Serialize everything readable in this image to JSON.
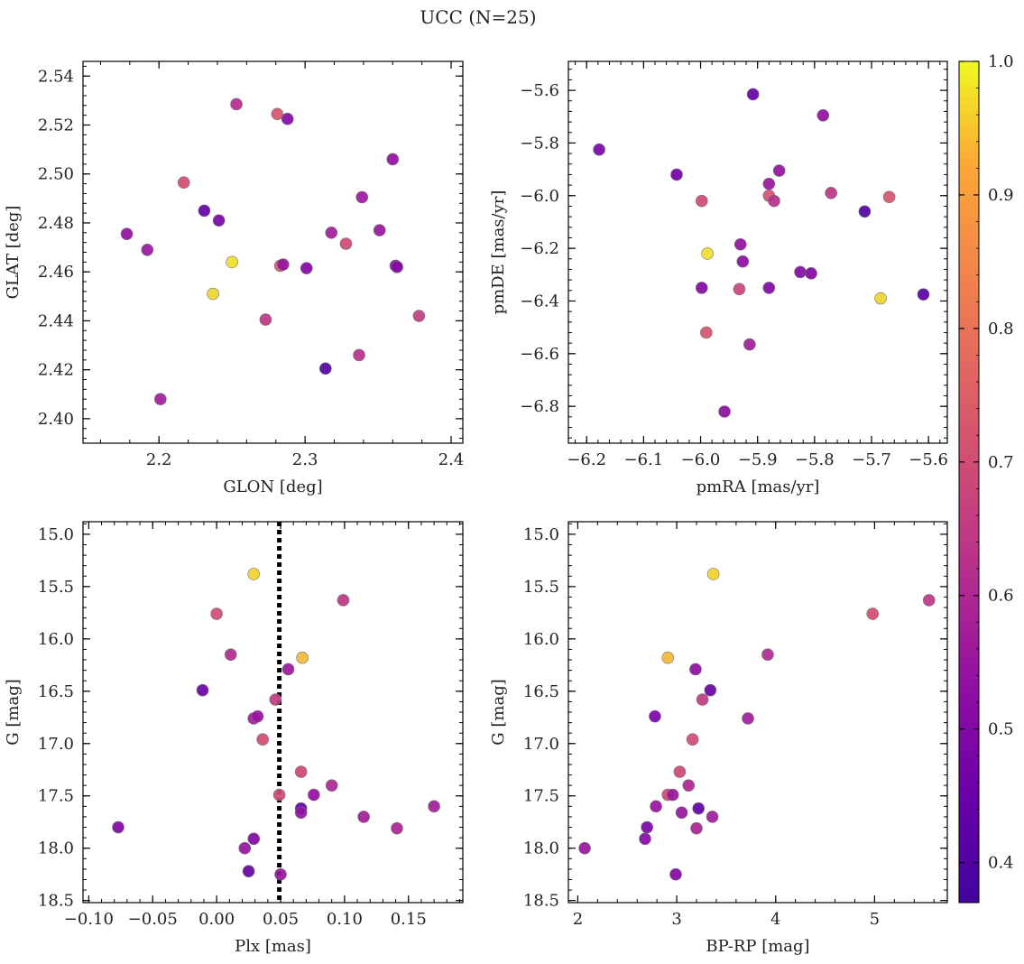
{
  "figure": {
    "title": "UCC (N=25)"
  },
  "colorbar": {
    "range": [
      0.37,
      1.0
    ],
    "ticks": [
      0.4,
      0.5,
      0.6,
      0.7,
      0.8,
      0.9,
      1.0
    ],
    "tick_labels": [
      "0.4",
      "0.5",
      "0.6",
      "0.7",
      "0.8",
      "0.9",
      "1.0"
    ],
    "colormap": "plasma"
  },
  "chart_data": [
    {
      "type": "scatter",
      "id": "glon-glat",
      "title": "",
      "xlabel": "GLON [deg]",
      "ylabel": "GLAT [deg]",
      "xlim": [
        2.148,
        2.408
      ],
      "ylim": [
        2.39,
        2.546
      ],
      "y_inverted": false,
      "xticks": [
        2.2,
        2.3,
        2.4
      ],
      "xtick_labels": [
        "2.2",
        "2.3",
        "2.4"
      ],
      "yticks": [
        2.4,
        2.42,
        2.44,
        2.46,
        2.48,
        2.5,
        2.52,
        2.54
      ],
      "ytick_labels": [
        "2.40",
        "2.42",
        "2.44",
        "2.46",
        "2.48",
        "2.50",
        "2.52",
        "2.54"
      ],
      "points": [
        {
          "x": 2.178,
          "y": 2.4755,
          "c": 0.56
        },
        {
          "x": 2.192,
          "y": 2.469,
          "c": 0.58
        },
        {
          "x": 2.201,
          "y": 2.408,
          "c": 0.6
        },
        {
          "x": 2.217,
          "y": 2.4965,
          "c": 0.75
        },
        {
          "x": 2.231,
          "y": 2.485,
          "c": 0.45
        },
        {
          "x": 2.237,
          "y": 2.451,
          "c": 0.97
        },
        {
          "x": 2.241,
          "y": 2.481,
          "c": 0.5
        },
        {
          "x": 2.25,
          "y": 2.464,
          "c": 0.98
        },
        {
          "x": 2.253,
          "y": 2.5285,
          "c": 0.65
        },
        {
          "x": 2.273,
          "y": 2.4405,
          "c": 0.68
        },
        {
          "x": 2.281,
          "y": 2.5245,
          "c": 0.77
        },
        {
          "x": 2.283,
          "y": 2.4625,
          "c": 0.78
        },
        {
          "x": 2.285,
          "y": 2.463,
          "c": 0.57
        },
        {
          "x": 2.288,
          "y": 2.5225,
          "c": 0.53
        },
        {
          "x": 2.301,
          "y": 2.4615,
          "c": 0.52
        },
        {
          "x": 2.314,
          "y": 2.4205,
          "c": 0.42
        },
        {
          "x": 2.318,
          "y": 2.476,
          "c": 0.6
        },
        {
          "x": 2.328,
          "y": 2.4715,
          "c": 0.74
        },
        {
          "x": 2.337,
          "y": 2.426,
          "c": 0.66
        },
        {
          "x": 2.339,
          "y": 2.4905,
          "c": 0.59
        },
        {
          "x": 2.351,
          "y": 2.477,
          "c": 0.57
        },
        {
          "x": 2.36,
          "y": 2.506,
          "c": 0.56
        },
        {
          "x": 2.362,
          "y": 2.4625,
          "c": 0.54
        },
        {
          "x": 2.363,
          "y": 2.462,
          "c": 0.53
        },
        {
          "x": 2.378,
          "y": 2.442,
          "c": 0.7
        }
      ]
    },
    {
      "type": "scatter",
      "id": "pmra-pmde",
      "title": "",
      "xlabel": "pmRA [mas/yr]",
      "ylabel": "pmDE [mas/yr]",
      "xlim": [
        -6.232,
        -5.567
      ],
      "ylim": [
        -6.94,
        -5.49
      ],
      "y_inverted": false,
      "xticks": [
        -6.2,
        -6.1,
        -6.0,
        -5.9,
        -5.8,
        -5.7,
        -5.6
      ],
      "xtick_labels": [
        "−6.2",
        "−6.1",
        "−6.0",
        "−5.9",
        "−5.8",
        "−5.7",
        "−5.6"
      ],
      "yticks": [
        -6.8,
        -6.6,
        -6.4,
        -6.2,
        -6.0,
        -5.8,
        -5.6
      ],
      "ytick_labels": [
        "−6.8",
        "−6.6",
        "−6.4",
        "−6.2",
        "−6.0",
        "−5.8",
        "−5.6"
      ],
      "points": [
        {
          "x": -6.178,
          "y": -5.825,
          "c": 0.5
        },
        {
          "x": -6.042,
          "y": -5.92,
          "c": 0.48
        },
        {
          "x": -5.998,
          "y": -6.35,
          "c": 0.52
        },
        {
          "x": -5.998,
          "y": -6.02,
          "c": 0.74
        },
        {
          "x": -5.99,
          "y": -6.52,
          "c": 0.77
        },
        {
          "x": -5.988,
          "y": -6.22,
          "c": 0.98
        },
        {
          "x": -5.958,
          "y": -6.82,
          "c": 0.55
        },
        {
          "x": -5.932,
          "y": -6.355,
          "c": 0.72
        },
        {
          "x": -5.93,
          "y": -6.185,
          "c": 0.56
        },
        {
          "x": -5.926,
          "y": -6.25,
          "c": 0.55
        },
        {
          "x": -5.914,
          "y": -6.565,
          "c": 0.6
        },
        {
          "x": -5.908,
          "y": -5.615,
          "c": 0.45
        },
        {
          "x": -5.88,
          "y": -6.35,
          "c": 0.52
        },
        {
          "x": -5.88,
          "y": -5.955,
          "c": 0.57
        },
        {
          "x": -5.88,
          "y": -6.0,
          "c": 0.76
        },
        {
          "x": -5.871,
          "y": -6.02,
          "c": 0.66
        },
        {
          "x": -5.862,
          "y": -5.905,
          "c": 0.56
        },
        {
          "x": -5.825,
          "y": -6.29,
          "c": 0.53
        },
        {
          "x": -5.806,
          "y": -6.295,
          "c": 0.52
        },
        {
          "x": -5.785,
          "y": -5.695,
          "c": 0.56
        },
        {
          "x": -5.771,
          "y": -5.99,
          "c": 0.68
        },
        {
          "x": -5.712,
          "y": -6.06,
          "c": 0.42
        },
        {
          "x": -5.684,
          "y": -6.39,
          "c": 0.97
        },
        {
          "x": -5.669,
          "y": -6.005,
          "c": 0.77
        },
        {
          "x": -5.609,
          "y": -6.375,
          "c": 0.42
        }
      ]
    },
    {
      "type": "scatter",
      "id": "plx-g",
      "title": "",
      "xlabel": "Plx [mas]",
      "ylabel": "G [mag]",
      "xlim": [
        -0.1045,
        0.1925
      ],
      "ylim": [
        14.88,
        18.52
      ],
      "y_inverted": true,
      "xticks": [
        -0.1,
        -0.05,
        0.0,
        0.05,
        0.1,
        0.15
      ],
      "xtick_labels": [
        "−0.10",
        "−0.05",
        "0.00",
        "0.05",
        "0.10",
        "0.15"
      ],
      "yticks": [
        15.0,
        15.5,
        16.0,
        16.5,
        17.0,
        17.5,
        18.0,
        18.5
      ],
      "ytick_labels": [
        "15.0",
        "15.5",
        "16.0",
        "16.5",
        "17.0",
        "17.5",
        "18.0",
        "18.5"
      ],
      "vline": {
        "x": 0.049,
        "style": "dotted"
      },
      "points": [
        {
          "x": -0.077,
          "y": 17.8,
          "c": 0.52
        },
        {
          "x": -0.011,
          "y": 16.49,
          "c": 0.47
        },
        {
          "x": 0.0,
          "y": 15.76,
          "c": 0.75
        },
        {
          "x": 0.011,
          "y": 16.15,
          "c": 0.64
        },
        {
          "x": 0.022,
          "y": 18.0,
          "c": 0.57
        },
        {
          "x": 0.025,
          "y": 18.22,
          "c": 0.45
        },
        {
          "x": 0.029,
          "y": 15.38,
          "c": 0.97
        },
        {
          "x": 0.029,
          "y": 16.76,
          "c": 0.6
        },
        {
          "x": 0.029,
          "y": 17.91,
          "c": 0.52
        },
        {
          "x": 0.032,
          "y": 16.74,
          "c": 0.57
        },
        {
          "x": 0.036,
          "y": 16.96,
          "c": 0.75
        },
        {
          "x": 0.046,
          "y": 16.58,
          "c": 0.69
        },
        {
          "x": 0.049,
          "y": 17.49,
          "c": 0.74
        },
        {
          "x": 0.05,
          "y": 18.25,
          "c": 0.58
        },
        {
          "x": 0.056,
          "y": 16.29,
          "c": 0.58
        },
        {
          "x": 0.066,
          "y": 17.62,
          "c": 0.44
        },
        {
          "x": 0.066,
          "y": 17.27,
          "c": 0.73
        },
        {
          "x": 0.066,
          "y": 17.66,
          "c": 0.57
        },
        {
          "x": 0.067,
          "y": 16.18,
          "c": 0.95
        },
        {
          "x": 0.076,
          "y": 17.49,
          "c": 0.56
        },
        {
          "x": 0.09,
          "y": 17.4,
          "c": 0.63
        },
        {
          "x": 0.099,
          "y": 15.63,
          "c": 0.68
        },
        {
          "x": 0.115,
          "y": 17.7,
          "c": 0.6
        },
        {
          "x": 0.141,
          "y": 17.81,
          "c": 0.62
        },
        {
          "x": 0.17,
          "y": 17.6,
          "c": 0.6
        }
      ]
    },
    {
      "type": "scatter",
      "id": "bprp-g",
      "title": "",
      "xlabel": "BP-RP [mag]",
      "ylabel": "G [mag]",
      "xlim": [
        1.905,
        5.735
      ],
      "ylim": [
        14.88,
        18.52
      ],
      "y_inverted": true,
      "xticks": [
        2,
        3,
        4,
        5
      ],
      "xtick_labels": [
        "2",
        "3",
        "4",
        "5"
      ],
      "yticks": [
        15.0,
        15.5,
        16.0,
        16.5,
        17.0,
        17.5,
        18.0,
        18.5
      ],
      "ytick_labels": [
        "15.0",
        "15.5",
        "16.0",
        "16.5",
        "17.0",
        "17.5",
        "18.0",
        "18.5"
      ],
      "points": [
        {
          "x": 2.07,
          "y": 18.0,
          "c": 0.57
        },
        {
          "x": 2.68,
          "y": 17.91,
          "c": 0.53
        },
        {
          "x": 2.7,
          "y": 17.8,
          "c": 0.5
        },
        {
          "x": 2.78,
          "y": 16.74,
          "c": 0.5
        },
        {
          "x": 2.79,
          "y": 17.6,
          "c": 0.57
        },
        {
          "x": 2.91,
          "y": 16.18,
          "c": 0.95
        },
        {
          "x": 2.91,
          "y": 17.49,
          "c": 0.74
        },
        {
          "x": 2.96,
          "y": 17.49,
          "c": 0.58
        },
        {
          "x": 2.99,
          "y": 18.25,
          "c": 0.52
        },
        {
          "x": 3.03,
          "y": 17.27,
          "c": 0.73
        },
        {
          "x": 3.05,
          "y": 17.66,
          "c": 0.57
        },
        {
          "x": 3.12,
          "y": 17.4,
          "c": 0.63
        },
        {
          "x": 3.16,
          "y": 16.96,
          "c": 0.75
        },
        {
          "x": 3.19,
          "y": 16.29,
          "c": 0.55
        },
        {
          "x": 3.2,
          "y": 17.81,
          "c": 0.62
        },
        {
          "x": 3.22,
          "y": 17.62,
          "c": 0.44
        },
        {
          "x": 3.26,
          "y": 16.58,
          "c": 0.69
        },
        {
          "x": 3.34,
          "y": 16.49,
          "c": 0.47
        },
        {
          "x": 3.36,
          "y": 17.7,
          "c": 0.6
        },
        {
          "x": 3.37,
          "y": 15.38,
          "c": 0.97
        },
        {
          "x": 3.72,
          "y": 16.76,
          "c": 0.6
        },
        {
          "x": 3.92,
          "y": 16.15,
          "c": 0.64
        },
        {
          "x": 4.98,
          "y": 15.76,
          "c": 0.75
        },
        {
          "x": 5.55,
          "y": 15.63,
          "c": 0.68
        }
      ]
    }
  ]
}
